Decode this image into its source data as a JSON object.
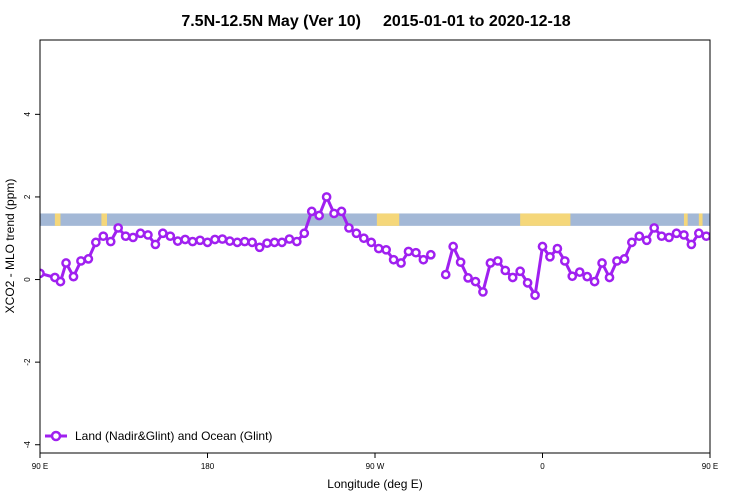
{
  "chart_data": {
    "type": "line",
    "title_left": "7.5N-12.5N May (Ver 10)",
    "title_right": "2015-01-01 to 2020-12-18",
    "xlabel": "Longitude (deg E)",
    "ylabel": "XCO2 - MLO trend (ppm)",
    "xlim": [
      90,
      450
    ],
    "ylim": [
      -4.2,
      5.8
    ],
    "x_ticks": [
      {
        "value": 90,
        "label": "90 E"
      },
      {
        "value": 180,
        "label": "180"
      },
      {
        "value": 270,
        "label": "90 W"
      },
      {
        "value": 360,
        "label": "0"
      },
      {
        "value": 450,
        "label": "90 E"
      },
      {
        "value": 540,
        "label": "180"
      }
    ],
    "y_ticks": [
      {
        "value": -4,
        "label": "-4"
      },
      {
        "value": -2,
        "label": "-2"
      },
      {
        "value": 0,
        "label": "0"
      },
      {
        "value": 2,
        "label": "2"
      },
      {
        "value": 4,
        "label": "4"
      }
    ],
    "colors": {
      "series": "#a020f0",
      "ocean": "#a3b8d6",
      "land": "#f5d77a",
      "axis": "#000000"
    },
    "land_ocean_band": {
      "y_range": [
        1.3,
        1.6
      ],
      "land_segments": [
        [
          98,
          101
        ],
        [
          123,
          126
        ],
        [
          271,
          283
        ],
        [
          348,
          375
        ],
        [
          436,
          438
        ],
        [
          444,
          446
        ]
      ]
    },
    "legend": {
      "position": "bottom-left",
      "entries": [
        "Land (Nadir&Glint) and Ocean (Glint)"
      ]
    },
    "series": [
      {
        "segments": [
          [
            [
              90,
              0.15
            ],
            [
              98,
              0.05
            ],
            [
              101,
              -0.05
            ],
            [
              104,
              0.4
            ],
            [
              108,
              0.07
            ],
            [
              112,
              0.45
            ],
            [
              116,
              0.5
            ],
            [
              120,
              0.9
            ],
            [
              124,
              1.05
            ],
            [
              128,
              0.92
            ],
            [
              132,
              1.25
            ],
            [
              136,
              1.05
            ],
            [
              140,
              1.02
            ],
            [
              144,
              1.12
            ],
            [
              148,
              1.08
            ],
            [
              152,
              0.85
            ],
            [
              156,
              1.12
            ],
            [
              160,
              1.05
            ],
            [
              164,
              0.93
            ],
            [
              168,
              0.97
            ],
            [
              172,
              0.92
            ],
            [
              176,
              0.95
            ],
            [
              180,
              0.9
            ],
            [
              184,
              0.97
            ],
            [
              188,
              0.98
            ],
            [
              192,
              0.93
            ],
            [
              196,
              0.9
            ],
            [
              200,
              0.92
            ],
            [
              204,
              0.9
            ],
            [
              208,
              0.78
            ],
            [
              212,
              0.88
            ],
            [
              216,
              0.9
            ],
            [
              220,
              0.9
            ],
            [
              224,
              0.98
            ],
            [
              228,
              0.92
            ],
            [
              232,
              1.12
            ],
            [
              236,
              1.65
            ],
            [
              240,
              1.55
            ],
            [
              244,
              2.0
            ],
            [
              248,
              1.6
            ],
            [
              252,
              1.65
            ],
            [
              256,
              1.25
            ],
            [
              260,
              1.12
            ],
            [
              264,
              1.0
            ],
            [
              268,
              0.9
            ],
            [
              272,
              0.75
            ],
            [
              276,
              0.72
            ],
            [
              280,
              0.48
            ],
            [
              284,
              0.4
            ],
            [
              288,
              0.68
            ],
            [
              292,
              0.65
            ],
            [
              296,
              0.48
            ],
            [
              300,
              0.6
            ]
          ],
          [
            [
              308,
              0.12
            ],
            [
              312,
              0.8
            ],
            [
              316,
              0.42
            ],
            [
              320,
              0.04
            ],
            [
              324,
              -0.05
            ],
            [
              328,
              -0.3
            ],
            [
              332,
              0.4
            ],
            [
              336,
              0.45
            ],
            [
              340,
              0.22
            ],
            [
              344,
              0.05
            ],
            [
              348,
              0.2
            ],
            [
              352,
              -0.08
            ],
            [
              356,
              -0.38
            ],
            [
              360,
              0.8
            ],
            [
              364,
              0.55
            ],
            [
              368,
              0.75
            ],
            [
              372,
              0.45
            ],
            [
              376,
              0.08
            ],
            [
              380,
              0.18
            ],
            [
              384,
              0.07
            ],
            [
              388,
              -0.05
            ],
            [
              392,
              0.4
            ],
            [
              396,
              0.05
            ],
            [
              400,
              0.45
            ],
            [
              404,
              0.5
            ],
            [
              408,
              0.9
            ],
            [
              412,
              1.05
            ],
            [
              416,
              0.95
            ],
            [
              420,
              1.25
            ],
            [
              424,
              1.05
            ],
            [
              428,
              1.02
            ],
            [
              432,
              1.12
            ],
            [
              436,
              1.08
            ],
            [
              440,
              0.85
            ],
            [
              444,
              1.12
            ],
            [
              448,
              1.05
            ]
          ]
        ]
      }
    ]
  }
}
